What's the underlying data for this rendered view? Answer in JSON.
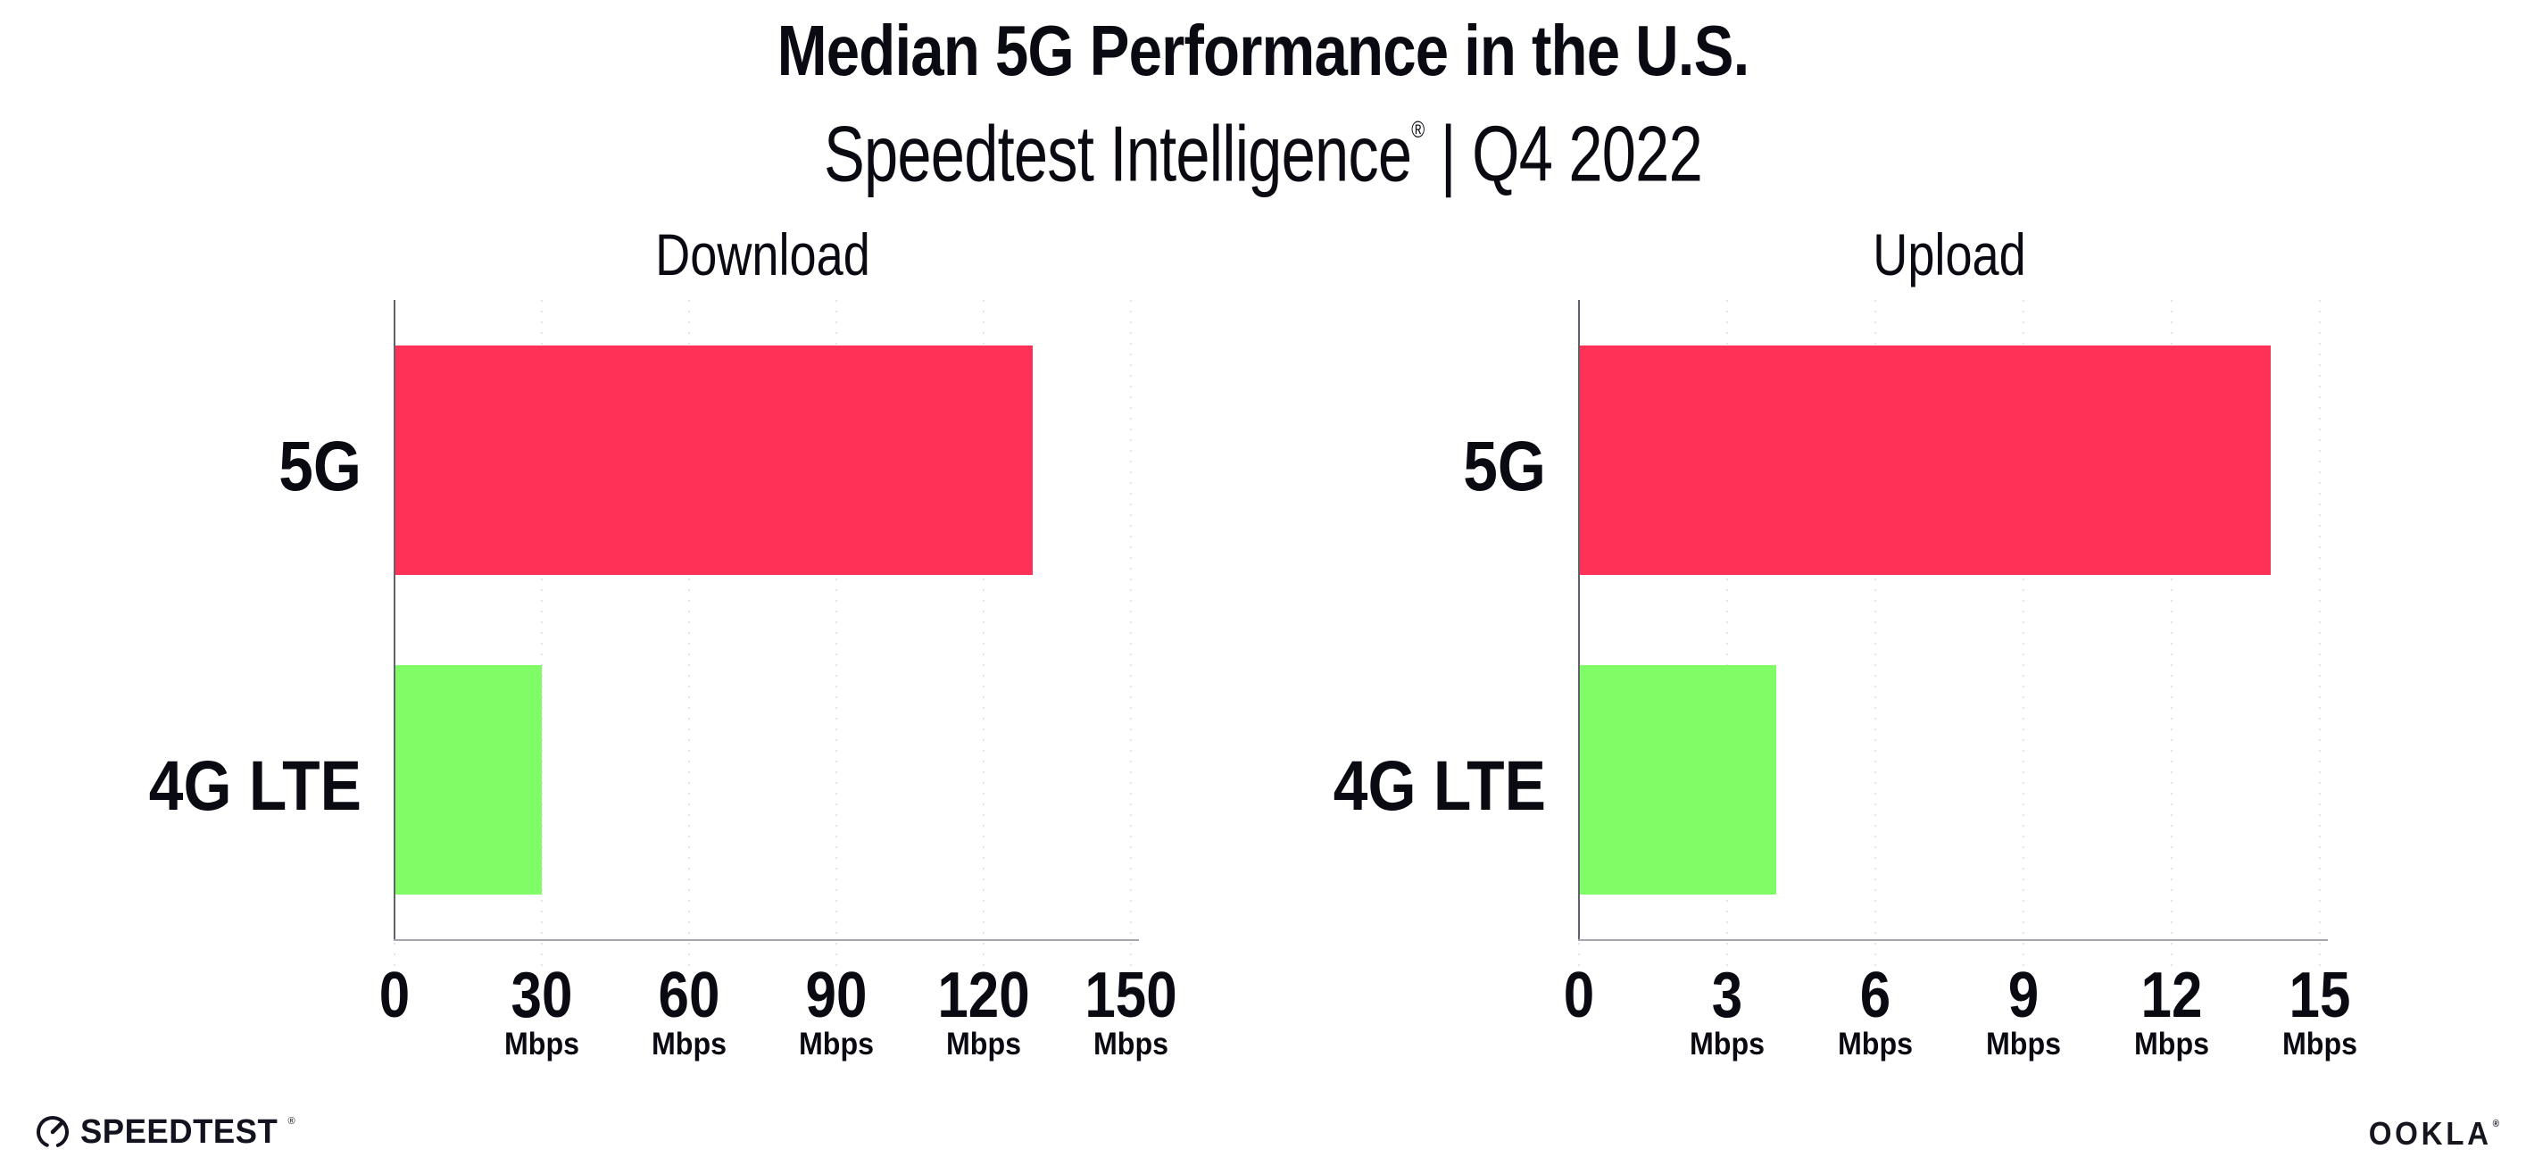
{
  "header": {
    "title": "Median 5G Performance in the U.S.",
    "subtitle_brand": "Speedtest Intelligence",
    "subtitle_reg": "®",
    "subtitle_rest": " | Q4 2022"
  },
  "chart_data": [
    {
      "type": "bar",
      "orientation": "horizontal",
      "title": "Download",
      "categories": [
        "5G",
        "4G LTE"
      ],
      "values": [
        130,
        30
      ],
      "unit": "Mbps",
      "xlim": [
        0,
        150
      ],
      "xticks": [
        0,
        30,
        60,
        90,
        120,
        150
      ],
      "bar_colors": [
        "#FF3157",
        "#80FC66"
      ],
      "grid": "dotted-vertical",
      "legend": "none"
    },
    {
      "type": "bar",
      "orientation": "horizontal",
      "title": "Upload",
      "categories": [
        "5G",
        "4G LTE"
      ],
      "values": [
        14,
        4
      ],
      "unit": "Mbps",
      "xlim": [
        0,
        15
      ],
      "xticks": [
        0,
        3,
        6,
        9,
        12,
        15
      ],
      "bar_colors": [
        "#FF3157",
        "#80FC66"
      ],
      "grid": "dotted-vertical",
      "legend": "none"
    }
  ],
  "footer": {
    "speedtest_wordmark": "SPEEDTEST",
    "speedtest_reg": "®",
    "ookla_wordmark": "OOKLA",
    "ookla_reg": "®",
    "gauge_icon": "speedtest-gauge-icon"
  },
  "colors": {
    "bar_5g": "#FF3157",
    "bar_4g": "#80FC66",
    "gridline": "#E5E5F0",
    "x_axis": "#A6A6AE",
    "y_axis": "#62626E",
    "text": "#0A0A12"
  }
}
